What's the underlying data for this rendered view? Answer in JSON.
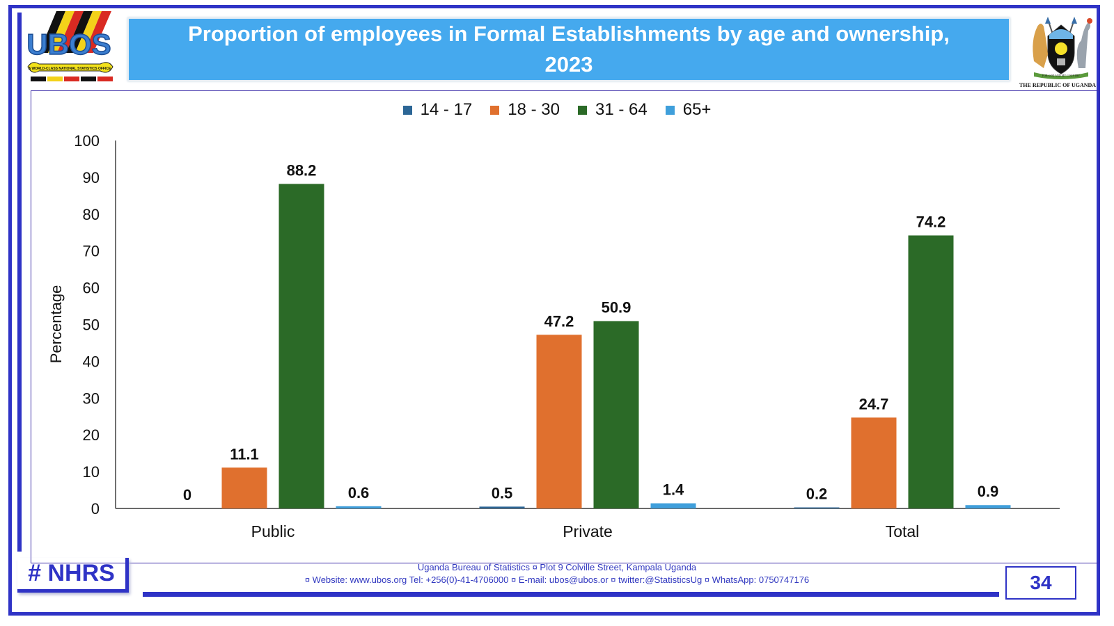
{
  "header": {
    "title_line1": "Proportion of employees in Formal Establishments by age and ownership,",
    "title_line2": "2023",
    "logo_left": {
      "text": "UBOS",
      "tagline": "A WORLD-CLASS NATIONAL STATISTICS OFFICE"
    },
    "logo_right": {
      "motto": "FOR GOD AND MY COUNTRY",
      "caption": "THE REPUBLIC OF UGANDA"
    }
  },
  "chart_data": {
    "type": "bar",
    "title": "Proportion of employees in Formal Establishments by age and ownership, 2023",
    "xlabel": "",
    "ylabel": "Percentage",
    "ylim": [
      0,
      100
    ],
    "yticks": [
      0,
      10,
      20,
      30,
      40,
      50,
      60,
      70,
      80,
      90,
      100
    ],
    "grid": false,
    "legend_position": "top",
    "categories": [
      "Public",
      "Private",
      "Total"
    ],
    "series": [
      {
        "name": "14 - 17",
        "color": "#2c6696",
        "values": [
          0,
          0.5,
          0.2
        ],
        "labels": [
          "0",
          "0.5",
          "0.2"
        ]
      },
      {
        "name": "18 - 30",
        "color": "#e0702e",
        "values": [
          11.1,
          47.2,
          24.7
        ],
        "labels": [
          "11.1",
          "47.2",
          "24.7"
        ]
      },
      {
        "name": "31 - 64",
        "color": "#2b6a27",
        "values": [
          88.2,
          50.9,
          74.2
        ],
        "labels": [
          "88.2",
          "50.9",
          "74.2"
        ]
      },
      {
        "name": "65+",
        "color": "#3f9fdb",
        "values": [
          0.6,
          1.4,
          0.9
        ],
        "labels": [
          "0.6",
          "1.4",
          "0.9"
        ]
      }
    ]
  },
  "footer": {
    "hashtag": "# NHRS",
    "line1": "Uganda Bureau of Statistics ¤ Plot 9 Colville Street, Kampala Uganda",
    "line2": "¤ Website: www.ubos.org Tel: +256(0)-41-4706000 ¤ E-mail: ubos@ubos.or ¤ twitter:@StatisticsUg ¤ WhatsApp: 0750747176",
    "page_number": "34"
  },
  "colors": {
    "frame": "#2f33c6",
    "title_bg": "#45a9ee"
  }
}
